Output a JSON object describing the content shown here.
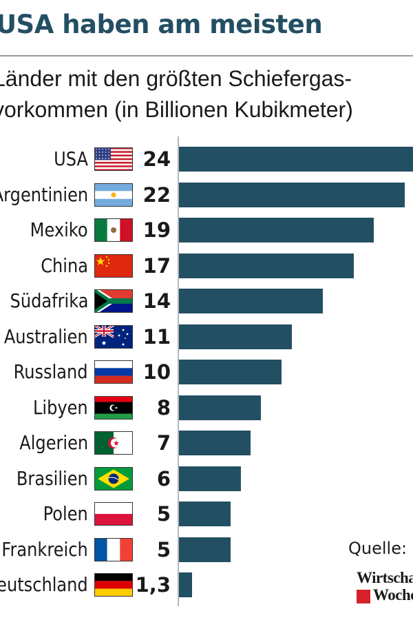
{
  "chart_data": {
    "type": "bar",
    "orientation": "horizontal",
    "title": "USA haben am meisten",
    "subtitle_lines": [
      "Länder mit den größten Schiefergas-",
      "vorkommen (in Billionen Kubikmeter)"
    ],
    "categories": [
      "USA",
      "Argentinien",
      "Mexiko",
      "China",
      "Südafrika",
      "Australien",
      "Russland",
      "Libyen",
      "Algerien",
      "Brasilien",
      "Polen",
      "Frankreich",
      "Deutschland"
    ],
    "values": [
      24,
      22,
      19,
      17,
      14,
      11,
      10,
      8,
      7,
      6,
      5,
      5,
      1.3
    ],
    "value_labels": [
      "24",
      "22",
      "19",
      "17",
      "14",
      "11",
      "10",
      "8",
      "7",
      "6",
      "5",
      "5",
      "1,3"
    ],
    "flags": [
      "us-flag-icon",
      "argentina-flag-icon",
      "mexico-flag-icon",
      "china-flag-icon",
      "south-africa-flag-icon",
      "australia-flag-icon",
      "russia-flag-icon",
      "libya-flag-icon",
      "algeria-flag-icon",
      "brazil-flag-icon",
      "poland-flag-icon",
      "france-flag-icon",
      "germany-flag-icon"
    ],
    "xlim": [
      0,
      24
    ],
    "grid": false,
    "bar_color": "#234f63"
  },
  "source": "Quelle: B",
  "logo": {
    "line1": "Wirtscha",
    "line2": "Woche"
  },
  "colors": {
    "title": "#234f63",
    "bar": "#234f63",
    "axis": "#aeb8bd"
  }
}
